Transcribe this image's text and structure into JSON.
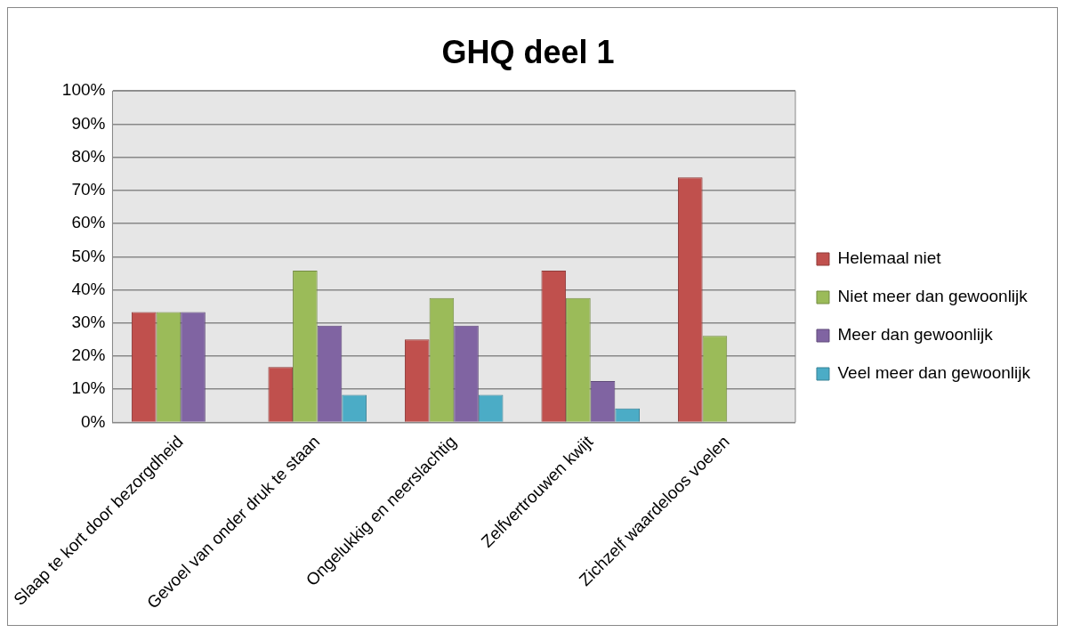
{
  "chart_data": {
    "type": "bar",
    "title": "GHQ deel 1",
    "categories": [
      "Slaap te kort door bezorgdheid",
      "Gevoel van onder druk te staan",
      "Ongelukkig en neerslachtig",
      "Zelfvertrouwen kwijt",
      "Zichzelf waardeloos voelen"
    ],
    "series": [
      {
        "name": "Helemaal niet",
        "color": "#c0504d",
        "values": [
          33.3,
          16.7,
          25,
          45.8,
          73.9
        ]
      },
      {
        "name": "Niet meer dan gewoonlijk",
        "color": "#9bbb59",
        "values": [
          33.3,
          45.8,
          37.5,
          37.5,
          26.1
        ]
      },
      {
        "name": "Meer dan gewoonlijk",
        "color": "#8064a2",
        "values": [
          33.3,
          29.2,
          29.2,
          12.5,
          null
        ]
      },
      {
        "name": "Veel meer dan gewoonlijk",
        "color": "#4bacc6",
        "values": [
          null,
          8.3,
          8.3,
          4.2,
          null
        ]
      }
    ],
    "ylim": [
      0,
      100
    ],
    "yticks": [
      {
        "value": 0,
        "label": "0%"
      },
      {
        "value": 10,
        "label": "10%"
      },
      {
        "value": 20,
        "label": "20%"
      },
      {
        "value": 30,
        "label": "30%"
      },
      {
        "value": 40,
        "label": "40%"
      },
      {
        "value": 50,
        "label": "50%"
      },
      {
        "value": 60,
        "label": "60%"
      },
      {
        "value": 70,
        "label": "70%"
      },
      {
        "value": 80,
        "label": "80%"
      },
      {
        "value": 90,
        "label": "90%"
      },
      {
        "value": 100,
        "label": "100%"
      }
    ],
    "grid": "y",
    "legend": "right"
  }
}
